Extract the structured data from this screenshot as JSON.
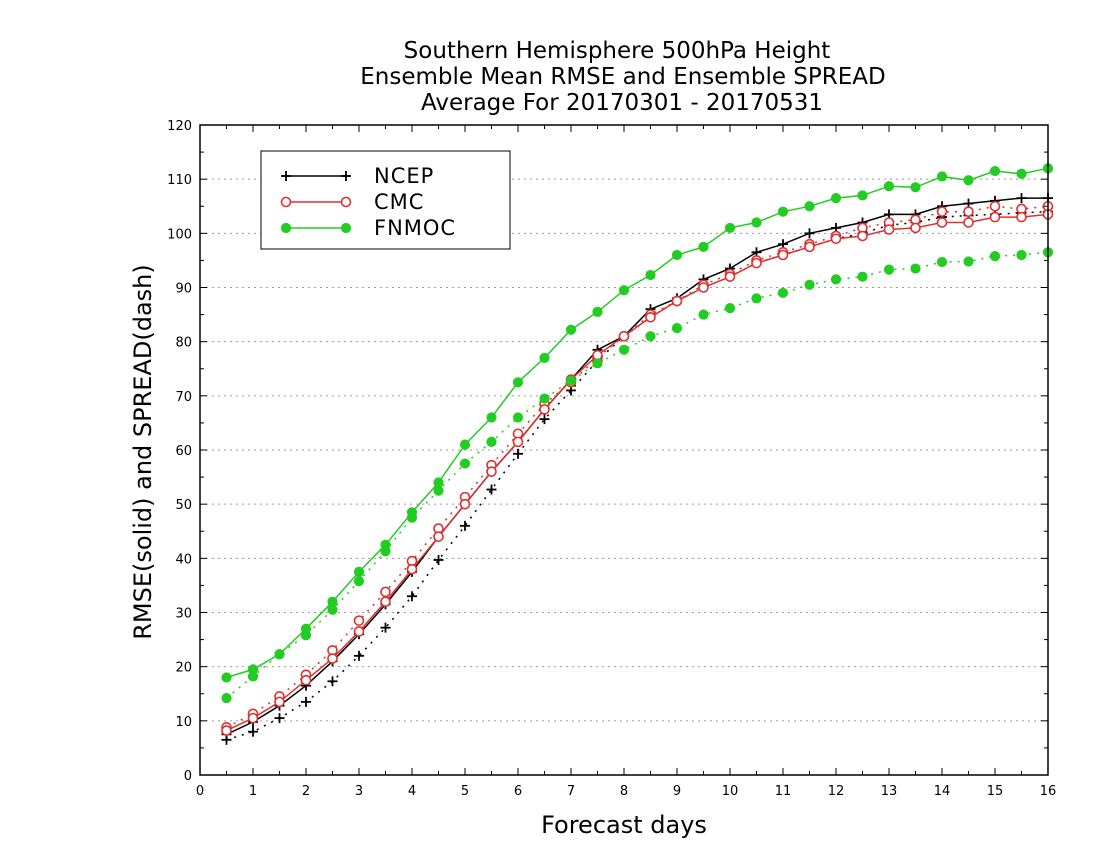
{
  "chart_data": {
    "type": "line",
    "title_lines": [
      "Southern Hemisphere 500hPa Height",
      "Ensemble Mean RMSE and Ensemble SPREAD",
      "Average For 20170301 - 20170531"
    ],
    "xlabel": "Forecast days",
    "ylabel": "RMSE(solid) and SPREAD(dash)",
    "xlim": [
      0,
      16
    ],
    "ylim": [
      0,
      120
    ],
    "xticks": [
      "0",
      "1",
      "2",
      "3",
      "4",
      "5",
      "6",
      "7",
      "8",
      "9",
      "10",
      "11",
      "12",
      "13",
      "14",
      "15",
      "16"
    ],
    "yticks": [
      "0",
      "10",
      "20",
      "30",
      "40",
      "50",
      "60",
      "70",
      "80",
      "90",
      "100",
      "110",
      "120"
    ],
    "grid": true,
    "legend_position": "top-left",
    "x": [
      0.5,
      1,
      1.5,
      2,
      2.5,
      3,
      3.5,
      4,
      4.5,
      5,
      5.5,
      6,
      6.5,
      7,
      7.5,
      8,
      8.5,
      9,
      9.5,
      10,
      10.5,
      11,
      11.5,
      12,
      12.5,
      13,
      13.5,
      14,
      14.5,
      15,
      15.5,
      16
    ],
    "series": [
      {
        "name": "NCEP",
        "color": "#000000",
        "marker": "plus",
        "rmse": [
          7.5,
          9.8,
          12.8,
          16.5,
          21,
          26,
          31.5,
          37.5,
          44,
          50,
          56,
          61.5,
          67.5,
          73,
          78.5,
          81,
          86,
          88,
          91.5,
          93.5,
          96.5,
          98,
          100,
          101,
          102,
          103.5,
          103.5,
          105,
          105.5,
          106,
          106.5,
          106.5
        ],
        "spread": [
          6.5,
          8,
          10.5,
          13.5,
          17.3,
          22,
          27.2,
          33,
          39.7,
          46,
          52.7,
          59.3,
          65.7,
          71,
          76.5,
          81,
          84.5,
          87.5,
          90,
          92,
          94.5,
          96,
          97.5,
          99,
          100,
          101.5,
          102,
          103,
          103.3,
          103.5,
          103.8,
          104
        ]
      },
      {
        "name": "CMC",
        "color": "#e03030",
        "marker": "circle",
        "rmse": [
          8.2,
          10.5,
          13.5,
          17.5,
          21.5,
          26.5,
          32,
          38,
          44,
          50,
          56,
          61.5,
          67.5,
          73,
          77.5,
          81,
          84.5,
          87.5,
          90,
          92,
          94.5,
          96,
          97.5,
          99,
          99.5,
          100.7,
          101,
          102,
          102,
          103,
          103,
          103.5
        ],
        "spread": [
          8.8,
          11.3,
          14.5,
          18.5,
          23,
          28.5,
          33.8,
          39.5,
          45.5,
          51.3,
          57.2,
          63,
          68.5,
          72.5,
          77,
          81,
          85,
          87.5,
          90.5,
          92.5,
          95,
          96.5,
          98,
          99.5,
          101,
          102,
          102.5,
          104,
          104,
          105,
          104.5,
          105
        ]
      },
      {
        "name": "FNMOC",
        "color": "#22cc22",
        "marker": "dot",
        "rmse": [
          18,
          19.5,
          22.3,
          27,
          32,
          37.5,
          42.5,
          48.5,
          54,
          61,
          66,
          72.5,
          77,
          82.2,
          85.5,
          89.5,
          92.3,
          96,
          97.5,
          101,
          102,
          104,
          105,
          106.5,
          107,
          108.7,
          108.5,
          110.5,
          109.8,
          111.5,
          111,
          112
        ],
        "spread": [
          14.2,
          18.2,
          22.3,
          25.8,
          30.5,
          35.8,
          41.3,
          47.5,
          52.5,
          57.5,
          61.5,
          66,
          69.5,
          72.8,
          76,
          78.5,
          81,
          82.5,
          85,
          86.2,
          88,
          89,
          90.5,
          91.5,
          92,
          93.3,
          93.5,
          94.7,
          94.8,
          95.8,
          96,
          96.5
        ]
      }
    ]
  }
}
